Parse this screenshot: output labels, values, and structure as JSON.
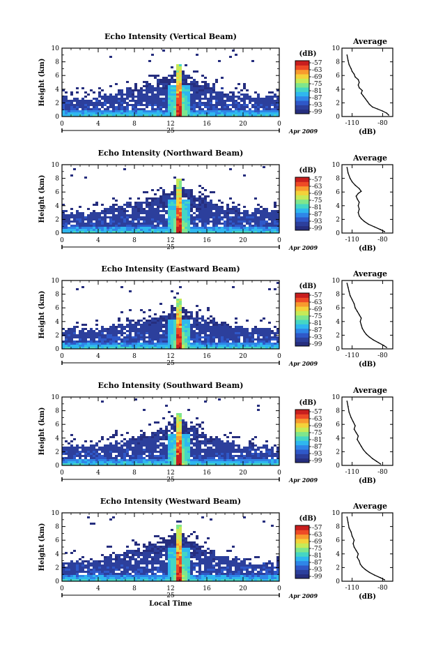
{
  "chart_data": [
    {
      "type": "heatmap",
      "title": "Echo Intensity (Vertical Beam)",
      "ylabel": "Height (km)",
      "x_ticks": [
        "0",
        "4",
        "8",
        "12",
        "16",
        "20",
        "0"
      ],
      "xlim": [
        0,
        24
      ],
      "y_ticks": [
        "0",
        "2",
        "4",
        "6",
        "8",
        "10"
      ],
      "ylim": [
        0,
        10
      ],
      "date_day": "25",
      "date_month": "Apr 2009",
      "colorbar": {
        "label": "(dB)",
        "ticks": [
          "-57",
          "-63",
          "-69",
          "-75",
          "-81",
          "-87",
          "-93",
          "-99"
        ]
      },
      "cloud_profile": [
        [
          0,
          3.0
        ],
        [
          2,
          2.6
        ],
        [
          4,
          3.0
        ],
        [
          6,
          3.6
        ],
        [
          8,
          4.0
        ],
        [
          10,
          4.8
        ],
        [
          11,
          5.5
        ],
        [
          12,
          6.2
        ],
        [
          12.6,
          6.8
        ],
        [
          13,
          7.8
        ],
        [
          13.4,
          6.6
        ],
        [
          14,
          5.8
        ],
        [
          15,
          5.2
        ],
        [
          16,
          4.6
        ],
        [
          18,
          3.8
        ],
        [
          20,
          3.2
        ],
        [
          22,
          3.0
        ],
        [
          24,
          3.0
        ]
      ],
      "spike_hour": 13,
      "spike_top_km": 7.8,
      "avg_profile": {
        "title": "Average",
        "xlabel": "(dB)",
        "x_ticks": [
          "-110",
          "-80"
        ],
        "xlim": [
          -120,
          -70
        ],
        "y_ticks": [
          "0",
          "2",
          "4",
          "6",
          "8",
          "10"
        ],
        "x": [
          -74,
          -76,
          -80,
          -85,
          -90,
          -93,
          -95,
          -97,
          -99,
          -101,
          -100,
          -103,
          -104,
          -103,
          -104,
          -107,
          -108,
          -110,
          -111,
          -113,
          -114,
          -115
        ],
        "y": [
          0.2,
          0.5,
          0.8,
          1.1,
          1.4,
          1.8,
          2.2,
          2.6,
          3.0,
          3.4,
          3.8,
          4.2,
          4.6,
          5.0,
          5.4,
          5.8,
          6.2,
          6.6,
          7.0,
          7.6,
          8.2,
          9.0
        ]
      }
    },
    {
      "type": "heatmap",
      "title": "Echo Intensity (Northward Beam)",
      "ylabel": "Height (km)",
      "x_ticks": [
        "0",
        "4",
        "8",
        "12",
        "16",
        "20",
        "0"
      ],
      "xlim": [
        0,
        24
      ],
      "y_ticks": [
        "0",
        "2",
        "4",
        "6",
        "8",
        "10"
      ],
      "ylim": [
        0,
        10
      ],
      "date_day": "25",
      "date_month": "Apr 2009",
      "colorbar": {
        "label": "(dB)",
        "ticks": [
          "-57",
          "-63",
          "-69",
          "-75",
          "-81",
          "-87",
          "-93",
          "-99"
        ]
      },
      "cloud_profile": [
        [
          0,
          3.2
        ],
        [
          2,
          3.0
        ],
        [
          4,
          3.4
        ],
        [
          6,
          4.0
        ],
        [
          8,
          4.6
        ],
        [
          10,
          5.2
        ],
        [
          11,
          5.8
        ],
        [
          12,
          6.4
        ],
        [
          12.6,
          7.0
        ],
        [
          13,
          8.0
        ],
        [
          13.4,
          6.8
        ],
        [
          14,
          6.0
        ],
        [
          15,
          5.4
        ],
        [
          16,
          4.8
        ],
        [
          18,
          4.0
        ],
        [
          20,
          3.4
        ],
        [
          22,
          3.2
        ],
        [
          24,
          3.2
        ]
      ],
      "spike_hour": 13,
      "spike_top_km": 8.0,
      "avg_profile": {
        "title": "Average",
        "xlabel": "(dB)",
        "x_ticks": [
          "-110",
          "-80"
        ],
        "xlim": [
          -120,
          -70
        ],
        "y_ticks": [
          "0",
          "2",
          "4",
          "6",
          "8",
          "10"
        ],
        "x": [
          -78,
          -82,
          -88,
          -94,
          -98,
          -101,
          -103,
          -104,
          -103,
          -104,
          -103,
          -105,
          -106,
          -104,
          -101,
          -103,
          -107,
          -110,
          -112,
          -114,
          -115
        ],
        "y": [
          0.2,
          0.5,
          0.9,
          1.3,
          1.7,
          2.1,
          2.5,
          3.0,
          3.5,
          4.0,
          4.5,
          5.0,
          5.4,
          5.8,
          6.1,
          6.5,
          7.0,
          7.5,
          8.0,
          8.8,
          9.6
        ]
      }
    },
    {
      "type": "heatmap",
      "title": "Echo Intensity (Eastward Beam)",
      "ylabel": "Height (km)",
      "x_ticks": [
        "0",
        "4",
        "8",
        "12",
        "16",
        "20",
        "0"
      ],
      "xlim": [
        0,
        24
      ],
      "y_ticks": [
        "0",
        "2",
        "4",
        "6",
        "8",
        "10"
      ],
      "ylim": [
        0,
        10
      ],
      "date_day": "25",
      "date_month": "Apr 2009",
      "colorbar": {
        "label": "(dB)",
        "ticks": [
          "-57",
          "-63",
          "-69",
          "-75",
          "-81",
          "-87",
          "-93",
          "-99"
        ]
      },
      "cloud_profile": [
        [
          0,
          3.0
        ],
        [
          2,
          2.8
        ],
        [
          4,
          3.0
        ],
        [
          6,
          3.4
        ],
        [
          8,
          4.0
        ],
        [
          10,
          4.6
        ],
        [
          11,
          5.2
        ],
        [
          12,
          6.0
        ],
        [
          12.6,
          6.6
        ],
        [
          13,
          7.2
        ],
        [
          13.4,
          6.4
        ],
        [
          14,
          5.6
        ],
        [
          15,
          5.0
        ],
        [
          16,
          4.4
        ],
        [
          18,
          3.6
        ],
        [
          20,
          3.0
        ],
        [
          22,
          2.8
        ],
        [
          24,
          2.8
        ]
      ],
      "spike_hour": 13,
      "spike_top_km": 7.2,
      "avg_profile": {
        "title": "Average",
        "xlabel": "(dB)",
        "x_ticks": [
          "-110",
          "-80"
        ],
        "xlim": [
          -120,
          -70
        ],
        "y_ticks": [
          "0",
          "2",
          "4",
          "6",
          "8",
          "10"
        ],
        "x": [
          -76,
          -79,
          -84,
          -89,
          -93,
          -96,
          -98,
          -100,
          -101,
          -102,
          -101,
          -103,
          -105,
          -107,
          -108,
          -110,
          -112,
          -113,
          -114,
          -115
        ],
        "y": [
          0.2,
          0.5,
          0.9,
          1.3,
          1.7,
          2.1,
          2.5,
          3.0,
          3.5,
          4.0,
          4.5,
          5.0,
          5.5,
          6.0,
          6.6,
          7.2,
          7.8,
          8.4,
          9.0,
          9.6
        ]
      }
    },
    {
      "type": "heatmap",
      "title": "Echo Intensity (Southward Beam)",
      "ylabel": "Height (km)",
      "x_ticks": [
        "0",
        "4",
        "8",
        "12",
        "16",
        "20",
        "0"
      ],
      "xlim": [
        0,
        24
      ],
      "y_ticks": [
        "0",
        "2",
        "4",
        "6",
        "8",
        "10"
      ],
      "ylim": [
        0,
        10
      ],
      "date_day": "25",
      "date_month": "Apr 2009",
      "colorbar": {
        "label": "(dB)",
        "ticks": [
          "-57",
          "-63",
          "-69",
          "-75",
          "-81",
          "-87",
          "-93",
          "-99"
        ]
      },
      "cloud_profile": [
        [
          0,
          2.8
        ],
        [
          2,
          2.6
        ],
        [
          4,
          3.0
        ],
        [
          6,
          3.6
        ],
        [
          8,
          4.2
        ],
        [
          10,
          4.8
        ],
        [
          11,
          5.4
        ],
        [
          12,
          6.2
        ],
        [
          12.6,
          6.8
        ],
        [
          13,
          7.6
        ],
        [
          13.4,
          6.6
        ],
        [
          14,
          5.8
        ],
        [
          15,
          5.0
        ],
        [
          16,
          4.4
        ],
        [
          18,
          3.6
        ],
        [
          20,
          3.0
        ],
        [
          22,
          2.8
        ],
        [
          24,
          2.6
        ]
      ],
      "spike_hour": 13,
      "spike_top_km": 7.6,
      "avg_profile": {
        "title": "Average",
        "xlabel": "(dB)",
        "x_ticks": [
          "-110",
          "-80"
        ],
        "xlim": [
          -120,
          -70
        ],
        "y_ticks": [
          "0",
          "2",
          "4",
          "6",
          "8",
          "10"
        ],
        "x": [
          -82,
          -86,
          -90,
          -93,
          -96,
          -99,
          -101,
          -103,
          -105,
          -104,
          -106,
          -108,
          -107,
          -109,
          -111,
          -113,
          -114,
          -115
        ],
        "y": [
          0.2,
          0.6,
          1.0,
          1.4,
          1.8,
          2.3,
          2.8,
          3.3,
          3.8,
          4.3,
          4.8,
          5.3,
          5.8,
          6.4,
          7.0,
          7.8,
          8.6,
          9.4
        ]
      }
    },
    {
      "type": "heatmap",
      "title": "Echo Intensity (Westward Beam)",
      "ylabel": "Height (km)",
      "x_ticks": [
        "0",
        "4",
        "8",
        "12",
        "16",
        "20",
        "0"
      ],
      "xlim": [
        0,
        24
      ],
      "y_ticks": [
        "0",
        "2",
        "4",
        "6",
        "8",
        "10"
      ],
      "ylim": [
        0,
        10
      ],
      "date_day": "25",
      "date_month": "Apr 2009",
      "xlabel": "Local Time",
      "colorbar": {
        "label": "(dB)",
        "ticks": [
          "-57",
          "-63",
          "-69",
          "-75",
          "-81",
          "-87",
          "-93",
          "-99"
        ]
      },
      "cloud_profile": [
        [
          0,
          3.0
        ],
        [
          2,
          2.8
        ],
        [
          4,
          3.2
        ],
        [
          6,
          3.8
        ],
        [
          8,
          4.4
        ],
        [
          10,
          5.0
        ],
        [
          11,
          5.8
        ],
        [
          12,
          6.6
        ],
        [
          12.6,
          7.2
        ],
        [
          13,
          8.2
        ],
        [
          13.4,
          7.0
        ],
        [
          14,
          6.0
        ],
        [
          15,
          5.2
        ],
        [
          16,
          4.6
        ],
        [
          18,
          3.6
        ],
        [
          20,
          3.0
        ],
        [
          22,
          2.8
        ],
        [
          24,
          2.8
        ]
      ],
      "spike_hour": 13,
      "spike_top_km": 8.2,
      "avg_profile": {
        "title": "Average",
        "xlabel": "(dB)",
        "x_ticks": [
          "-110",
          "-80"
        ],
        "xlim": [
          -120,
          -70
        ],
        "y_ticks": [
          "0",
          "2",
          "4",
          "6",
          "8",
          "10"
        ],
        "x": [
          -78,
          -82,
          -88,
          -93,
          -97,
          -100,
          -102,
          -103,
          -105,
          -104,
          -106,
          -108,
          -109,
          -108,
          -110,
          -111,
          -113,
          -114,
          -115
        ],
        "y": [
          0.2,
          0.5,
          0.9,
          1.3,
          1.7,
          2.1,
          2.5,
          3.0,
          3.5,
          4.0,
          4.5,
          5.0,
          5.5,
          6.0,
          6.6,
          7.2,
          7.8,
          8.6,
          9.4
        ]
      }
    }
  ],
  "colors": {
    "scale": [
      "#262e7e",
      "#2c3f9c",
      "#2f58c8",
      "#2f86e8",
      "#2fb7ef",
      "#45d6c4",
      "#7fe68c",
      "#c7ea57",
      "#f4d23a",
      "#f89a2e",
      "#ee4a26",
      "#c81e1e"
    ]
  }
}
